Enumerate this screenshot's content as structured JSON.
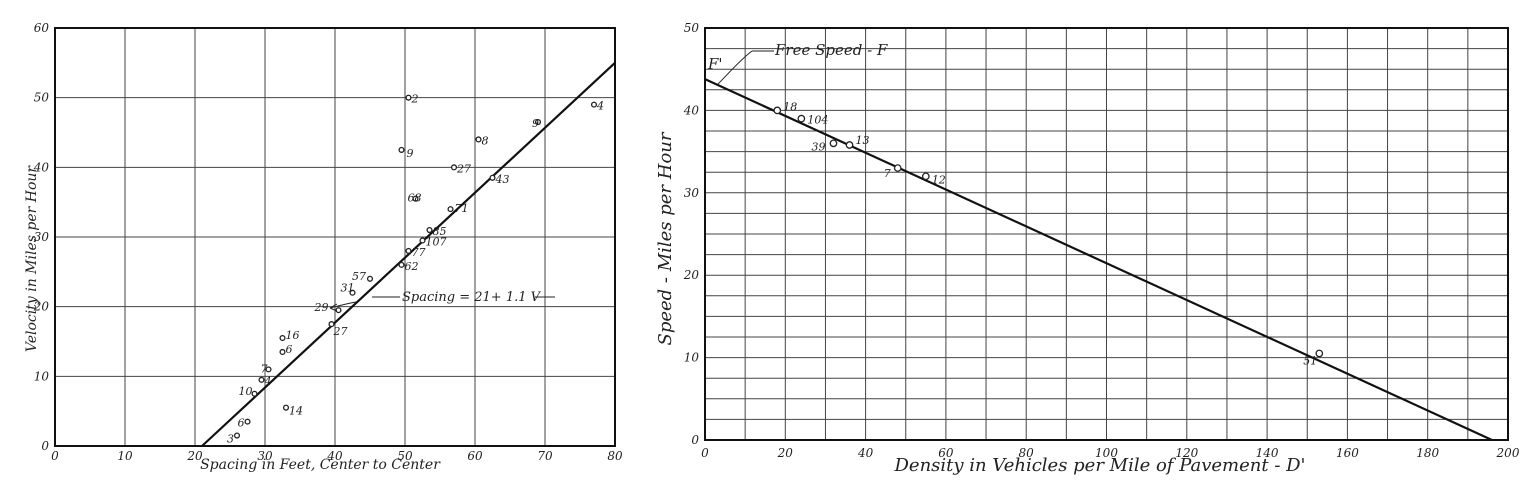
{
  "chart_data": [
    {
      "type": "scatter",
      "xlabel": "Spacing in Feet, Center to Center",
      "ylabel": "Velocity in Miles per Hour",
      "xlim": [
        0,
        80
      ],
      "ylim": [
        0,
        60
      ],
      "xticks": [
        "0",
        "10",
        "20",
        "30",
        "40",
        "50",
        "60",
        "70",
        "80"
      ],
      "yticks": [
        "0",
        "10",
        "20",
        "30",
        "40",
        "50",
        "60"
      ],
      "grid": true,
      "points": [
        {
          "label": "2",
          "x": 50.5,
          "y": 50
        },
        {
          "label": "4",
          "x": 77,
          "y": 49
        },
        {
          "label": "9",
          "x": 69,
          "y": 46.5
        },
        {
          "label": "8",
          "x": 60.5,
          "y": 44
        },
        {
          "label": "9",
          "x": 49.5,
          "y": 42.5
        },
        {
          "label": "27",
          "x": 57,
          "y": 40
        },
        {
          "label": "43",
          "x": 62.5,
          "y": 38.5
        },
        {
          "label": "68",
          "x": 51.5,
          "y": 35.5
        },
        {
          "label": "71",
          "x": 56.5,
          "y": 34
        },
        {
          "label": "85",
          "x": 53.5,
          "y": 31
        },
        {
          "label": "107",
          "x": 52.5,
          "y": 29.5
        },
        {
          "label": "77",
          "x": 50.5,
          "y": 28
        },
        {
          "label": "62",
          "x": 49.5,
          "y": 26
        },
        {
          "label": "57",
          "x": 45,
          "y": 24
        },
        {
          "label": "31",
          "x": 42.5,
          "y": 22
        },
        {
          "label": "29",
          "x": 40.5,
          "y": 19.5
        },
        {
          "label": "27",
          "x": 39.5,
          "y": 17.5
        },
        {
          "label": "16",
          "x": 32.5,
          "y": 15.5
        },
        {
          "label": "6",
          "x": 32.5,
          "y": 13.5
        },
        {
          "label": "7",
          "x": 30.5,
          "y": 11
        },
        {
          "label": "4",
          "x": 29.5,
          "y": 9.5
        },
        {
          "label": "10",
          "x": 28.5,
          "y": 7.5
        },
        {
          "label": "14",
          "x": 33,
          "y": 5.5
        },
        {
          "label": "6",
          "x": 27.5,
          "y": 3.5
        },
        {
          "label": "3",
          "x": 26,
          "y": 1.5
        }
      ],
      "fit_line": {
        "x": [
          21,
          80
        ],
        "y": [
          0,
          55
        ]
      },
      "annotation": "Spacing = 21+ 1.1 V"
    },
    {
      "type": "line",
      "xlabel": "Density in Vehicles per Mile of Pavement - D'",
      "ylabel": "Speed - Miles per Hour",
      "xlim": [
        0,
        200
      ],
      "ylim": [
        0,
        50
      ],
      "xticks": [
        "0",
        "20",
        "40",
        "60",
        "80",
        "100",
        "120",
        "140",
        "160",
        "180",
        "200"
      ],
      "yticks": [
        "0",
        "10",
        "20",
        "30",
        "40",
        "50"
      ],
      "grid": true,
      "points": [
        {
          "label": "18",
          "x": 18,
          "y": 40
        },
        {
          "label": "104",
          "x": 24,
          "y": 39
        },
        {
          "label": "39",
          "x": 32,
          "y": 36
        },
        {
          "label": "13",
          "x": 36,
          "y": 35.8
        },
        {
          "label": "7",
          "x": 48,
          "y": 33
        },
        {
          "label": "12",
          "x": 55,
          "y": 32
        },
        {
          "label": "51",
          "x": 153,
          "y": 10.5
        }
      ],
      "fit_line": {
        "x": [
          0,
          196
        ],
        "y": [
          43.8,
          0
        ]
      },
      "annotations": [
        "F'",
        "Free Speed - F"
      ]
    }
  ]
}
